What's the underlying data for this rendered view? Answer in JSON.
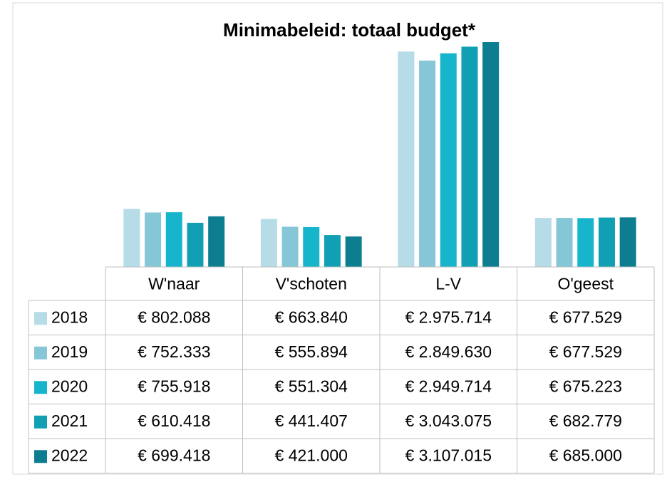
{
  "chart_data": {
    "type": "bar",
    "title": "Minimabeleid: totaal budget*",
    "categories": [
      "W'naar",
      "V'schoten",
      "L-V",
      "O'geest"
    ],
    "series": [
      {
        "name": "2018",
        "color": "#b6dce7",
        "values": [
          802088,
          663840,
          2975714,
          677529
        ],
        "value_labels": [
          "€ 802.088",
          "€ 663.840",
          "€ 2.975.714",
          "€ 677.529"
        ]
      },
      {
        "name": "2019",
        "color": "#86c7d7",
        "values": [
          752333,
          555894,
          2849630,
          677529
        ],
        "value_labels": [
          "€ 752.333",
          "€ 555.894",
          "€ 2.849.630",
          "€ 677.529"
        ]
      },
      {
        "name": "2020",
        "color": "#16b5cb",
        "values": [
          755918,
          551304,
          2949714,
          675223
        ],
        "value_labels": [
          "€ 755.918",
          "€ 551.304",
          "€ 2.949.714",
          "€ 675.223"
        ]
      },
      {
        "name": "2021",
        "color": "#119fb3",
        "values": [
          610418,
          441407,
          3043075,
          682779
        ],
        "value_labels": [
          "€ 610.418",
          "€ 441.407",
          "€ 3.043.075",
          "€ 682.779"
        ]
      },
      {
        "name": "2022",
        "color": "#0d7e90",
        "values": [
          699418,
          421000,
          3107015,
          685000
        ],
        "value_labels": [
          "€ 699.418",
          "€ 421.000",
          "€ 3.107.015",
          "€ 685.000"
        ]
      }
    ]
  }
}
